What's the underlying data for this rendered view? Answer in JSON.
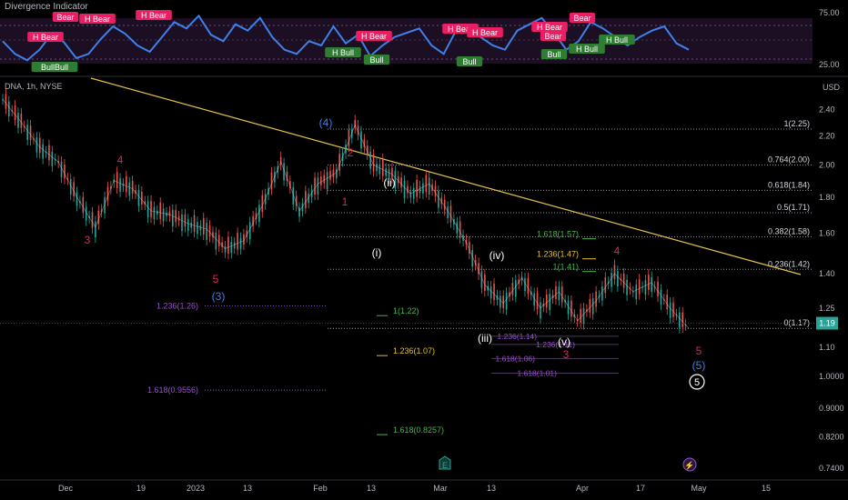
{
  "indicator": {
    "title": "Divergence Indicator",
    "levels": [
      "75.00",
      "25.00"
    ],
    "labels": [
      {
        "text": "H Bear",
        "kind": "bear",
        "x": 50,
        "y": 43
      },
      {
        "text": "Bear",
        "kind": "bear",
        "x": 72,
        "y": 21
      },
      {
        "text": "H Bear",
        "kind": "bear",
        "x": 107,
        "y": 23
      },
      {
        "text": "H Bear",
        "kind": "bear",
        "x": 169,
        "y": 19
      },
      {
        "text": "BullBull",
        "kind": "bull",
        "x": 60,
        "y": 76
      },
      {
        "text": "H Bull",
        "kind": "bull",
        "x": 377,
        "y": 60
      },
      {
        "text": "Bull",
        "kind": "bull",
        "x": 414,
        "y": 68
      },
      {
        "text": "H Bear",
        "kind": "bear",
        "x": 411,
        "y": 42
      },
      {
        "text": "H Bear",
        "kind": "bear",
        "x": 506,
        "y": 34
      },
      {
        "text": "H Bear",
        "kind": "bear",
        "x": 533,
        "y": 38
      },
      {
        "text": "Bull",
        "kind": "bull",
        "x": 516,
        "y": 70
      },
      {
        "text": "H Bear",
        "kind": "bear",
        "x": 604,
        "y": 32
      },
      {
        "text": "Bear",
        "kind": "bear",
        "x": 608,
        "y": 42
      },
      {
        "text": "Bull",
        "kind": "bull",
        "x": 609,
        "y": 62
      },
      {
        "text": "H Bull",
        "kind": "bull",
        "x": 645,
        "y": 56
      },
      {
        "text": "H Bull",
        "kind": "bull",
        "x": 678,
        "y": 46
      },
      {
        "text": "Bear",
        "kind": "bear",
        "x": 640,
        "y": 22
      }
    ]
  },
  "main": {
    "symbol": "DNA, 1h, NYSE",
    "unit": "USD",
    "price_tag": "1.19"
  },
  "chart_data": {
    "type": "line",
    "title": "DNA, 1h, NYSE",
    "xlabel": "",
    "ylabel": "USD",
    "scale": "log",
    "ylim": [
      0.72,
      2.55
    ],
    "x_ticks": [
      "Dec",
      "19",
      "2023",
      "13",
      "Feb",
      "13",
      "Mar",
      "13",
      "Apr",
      "17",
      "May",
      "15"
    ],
    "y_ticks": [
      "2.40",
      "2.20",
      "2.00",
      "1.80",
      "1.60",
      "1.40",
      "1.25",
      "1.10",
      "1.0000",
      "0.9000",
      "0.8200",
      "0.7400"
    ],
    "price_series": {
      "name": "",
      "x": [
        0,
        3,
        6,
        9,
        12,
        15,
        18,
        21,
        24,
        27,
        30,
        33,
        36,
        39,
        42,
        45,
        48,
        51,
        54,
        57,
        60,
        63,
        66,
        69,
        72,
        75,
        78,
        81,
        84,
        87,
        90,
        93,
        96,
        99,
        102,
        105,
        108,
        111
      ],
      "y": [
        2.48,
        2.3,
        2.12,
        2.02,
        1.8,
        1.63,
        1.9,
        1.85,
        1.72,
        1.7,
        1.65,
        1.62,
        1.52,
        1.56,
        1.75,
        2.02,
        1.72,
        1.88,
        1.95,
        2.28,
        2.0,
        1.94,
        1.82,
        1.88,
        1.72,
        1.55,
        1.35,
        1.27,
        1.38,
        1.25,
        1.32,
        1.2,
        1.28,
        1.4,
        1.32,
        1.36,
        1.25,
        1.17
      ]
    },
    "indicator_series": {
      "name": "",
      "values": [
        48,
        36,
        30,
        40,
        55,
        47,
        32,
        36,
        50,
        62,
        55,
        44,
        38,
        52,
        66,
        60,
        72,
        54,
        48,
        64,
        58,
        70,
        52,
        40,
        36,
        48,
        44,
        62,
        46,
        54,
        34,
        44,
        52,
        56,
        60,
        44,
        36,
        58,
        62,
        52,
        44,
        40,
        58,
        64,
        70,
        56,
        40,
        48,
        66,
        60,
        52,
        44,
        52,
        58,
        62,
        46,
        40
      ]
    },
    "fib_levels": [
      {
        "label": "1(2.25)",
        "value": 2.25
      },
      {
        "label": "0.764(2.00)",
        "value": 2.0
      },
      {
        "label": "0.618(1.84)",
        "value": 1.84
      },
      {
        "label": "0.5(1.71)",
        "value": 1.71
      },
      {
        "label": "0.382(1.58)",
        "value": 1.58
      },
      {
        "label": "0.236(1.42)",
        "value": 1.42
      },
      {
        "label": "0(1.17)",
        "value": 1.17
      }
    ],
    "extension_levels": [
      {
        "label": "1.236(1.26)",
        "value": 1.26,
        "color": "#9c4fd3"
      },
      {
        "label": "1.618(0.9556)",
        "value": 0.9556,
        "color": "#9c4fd3"
      },
      {
        "label": "1(1.22)",
        "value": 1.22,
        "color": "#4caf50"
      },
      {
        "label": "1.236(1.07)",
        "value": 1.07,
        "color": "#e0c030"
      },
      {
        "label": "1.618(0.8257)",
        "value": 0.8257,
        "color": "#4caf50"
      },
      {
        "label": "1.618(1.57)",
        "value": 1.57,
        "color": "#4caf50"
      },
      {
        "label": "1.236(1.47)",
        "value": 1.47,
        "color": "#e0c030"
      },
      {
        "label": "1(1.41)",
        "value": 1.41,
        "color": "#4caf50"
      },
      {
        "label": "1.236(1.14)",
        "value": 1.14,
        "color": "#9c4fd3"
      },
      {
        "label": "1.236(1.11)",
        "value": 1.11,
        "color": "#9c4fd3"
      },
      {
        "label": "1.618(1.06)",
        "value": 1.06,
        "color": "#9c4fd3"
      },
      {
        "label": "1.618(1.01)",
        "value": 1.01,
        "color": "#9c4fd3"
      }
    ],
    "wave_labels": [
      {
        "text": "3",
        "color": "#e91e63",
        "x": 96,
        "y": 268
      },
      {
        "text": "4",
        "color": "#e91e63",
        "x": 132,
        "y": 180
      },
      {
        "text": "5",
        "color": "#e91e63",
        "x": 237,
        "y": 311
      },
      {
        "text": "(3)",
        "color": "#3f7fe8",
        "x": 240,
        "y": 330
      },
      {
        "text": "(4)",
        "color": "#3f7fe8",
        "x": 358,
        "y": 139
      },
      {
        "text": "2",
        "color": "#e91e63",
        "x": 385,
        "y": 172
      },
      {
        "text": "1",
        "color": "#e91e63",
        "x": 379,
        "y": 226
      },
      {
        "text": "(ii)",
        "color": "#ffffff",
        "x": 428,
        "y": 205
      },
      {
        "text": "(i)",
        "color": "#ffffff",
        "x": 414,
        "y": 282
      },
      {
        "text": "(iv)",
        "color": "#ffffff",
        "x": 546,
        "y": 285
      },
      {
        "text": "(iii)",
        "color": "#ffffff",
        "x": 533,
        "y": 376
      },
      {
        "text": "(v)",
        "color": "#ffffff",
        "x": 620,
        "y": 380
      },
      {
        "text": "3",
        "color": "#e91e63",
        "x": 622,
        "y": 394
      },
      {
        "text": "4",
        "color": "#e91e63",
        "x": 678,
        "y": 280
      },
      {
        "text": "5",
        "color": "#e91e63",
        "x": 768,
        "y": 390
      },
      {
        "text": "(5)",
        "color": "#3f7fe8",
        "x": 768,
        "y": 406
      }
    ],
    "circle_label": "5",
    "event_badges": [
      "E",
      "⚡"
    ]
  }
}
